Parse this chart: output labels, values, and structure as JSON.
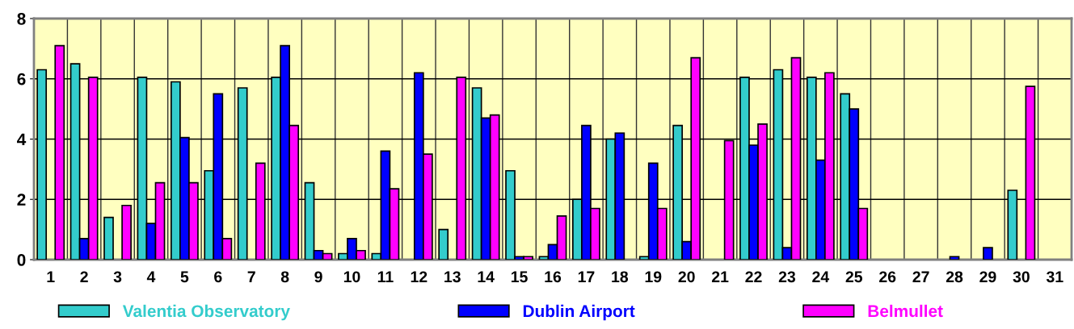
{
  "chart_data": {
    "type": "bar",
    "categories": [
      "1",
      "2",
      "3",
      "4",
      "5",
      "6",
      "7",
      "8",
      "9",
      "10",
      "11",
      "12",
      "13",
      "14",
      "15",
      "16",
      "17",
      "18",
      "19",
      "20",
      "21",
      "22",
      "23",
      "24",
      "25",
      "26",
      "27",
      "28",
      "29",
      "30",
      "31"
    ],
    "series": [
      {
        "name": "Valentia Observatory",
        "color": "#33cccc",
        "values": [
          6.3,
          6.5,
          1.4,
          6.05,
          5.9,
          2.95,
          5.7,
          6.05,
          2.55,
          0.2,
          0.2,
          null,
          1.0,
          5.7,
          2.95,
          0.1,
          2.0,
          4.0,
          0.1,
          4.45,
          null,
          6.05,
          6.3,
          6.05,
          5.5,
          null,
          null,
          null,
          null,
          2.3,
          null
        ]
      },
      {
        "name": "Dublin Airport",
        "color": "#0000ff",
        "values": [
          null,
          0.7,
          null,
          1.2,
          4.05,
          5.5,
          null,
          7.1,
          0.3,
          0.7,
          3.6,
          6.2,
          null,
          4.7,
          0.1,
          0.5,
          4.45,
          4.2,
          3.2,
          0.6,
          null,
          3.8,
          0.4,
          3.3,
          5.0,
          null,
          null,
          0.1,
          0.4,
          null,
          null
        ]
      },
      {
        "name": "Belmullet",
        "color": "#ff00ff",
        "values": [
          7.1,
          6.05,
          1.8,
          2.55,
          2.55,
          0.7,
          3.2,
          4.45,
          0.2,
          0.3,
          2.35,
          3.5,
          6.05,
          4.8,
          0.1,
          1.45,
          1.7,
          null,
          1.7,
          6.7,
          3.95,
          4.5,
          6.7,
          6.2,
          1.7,
          null,
          null,
          null,
          null,
          5.75,
          null
        ]
      }
    ],
    "ylim": [
      0,
      8
    ],
    "yticks": [
      0,
      2,
      4,
      6,
      8
    ],
    "grid": true,
    "legend": "bottom"
  }
}
